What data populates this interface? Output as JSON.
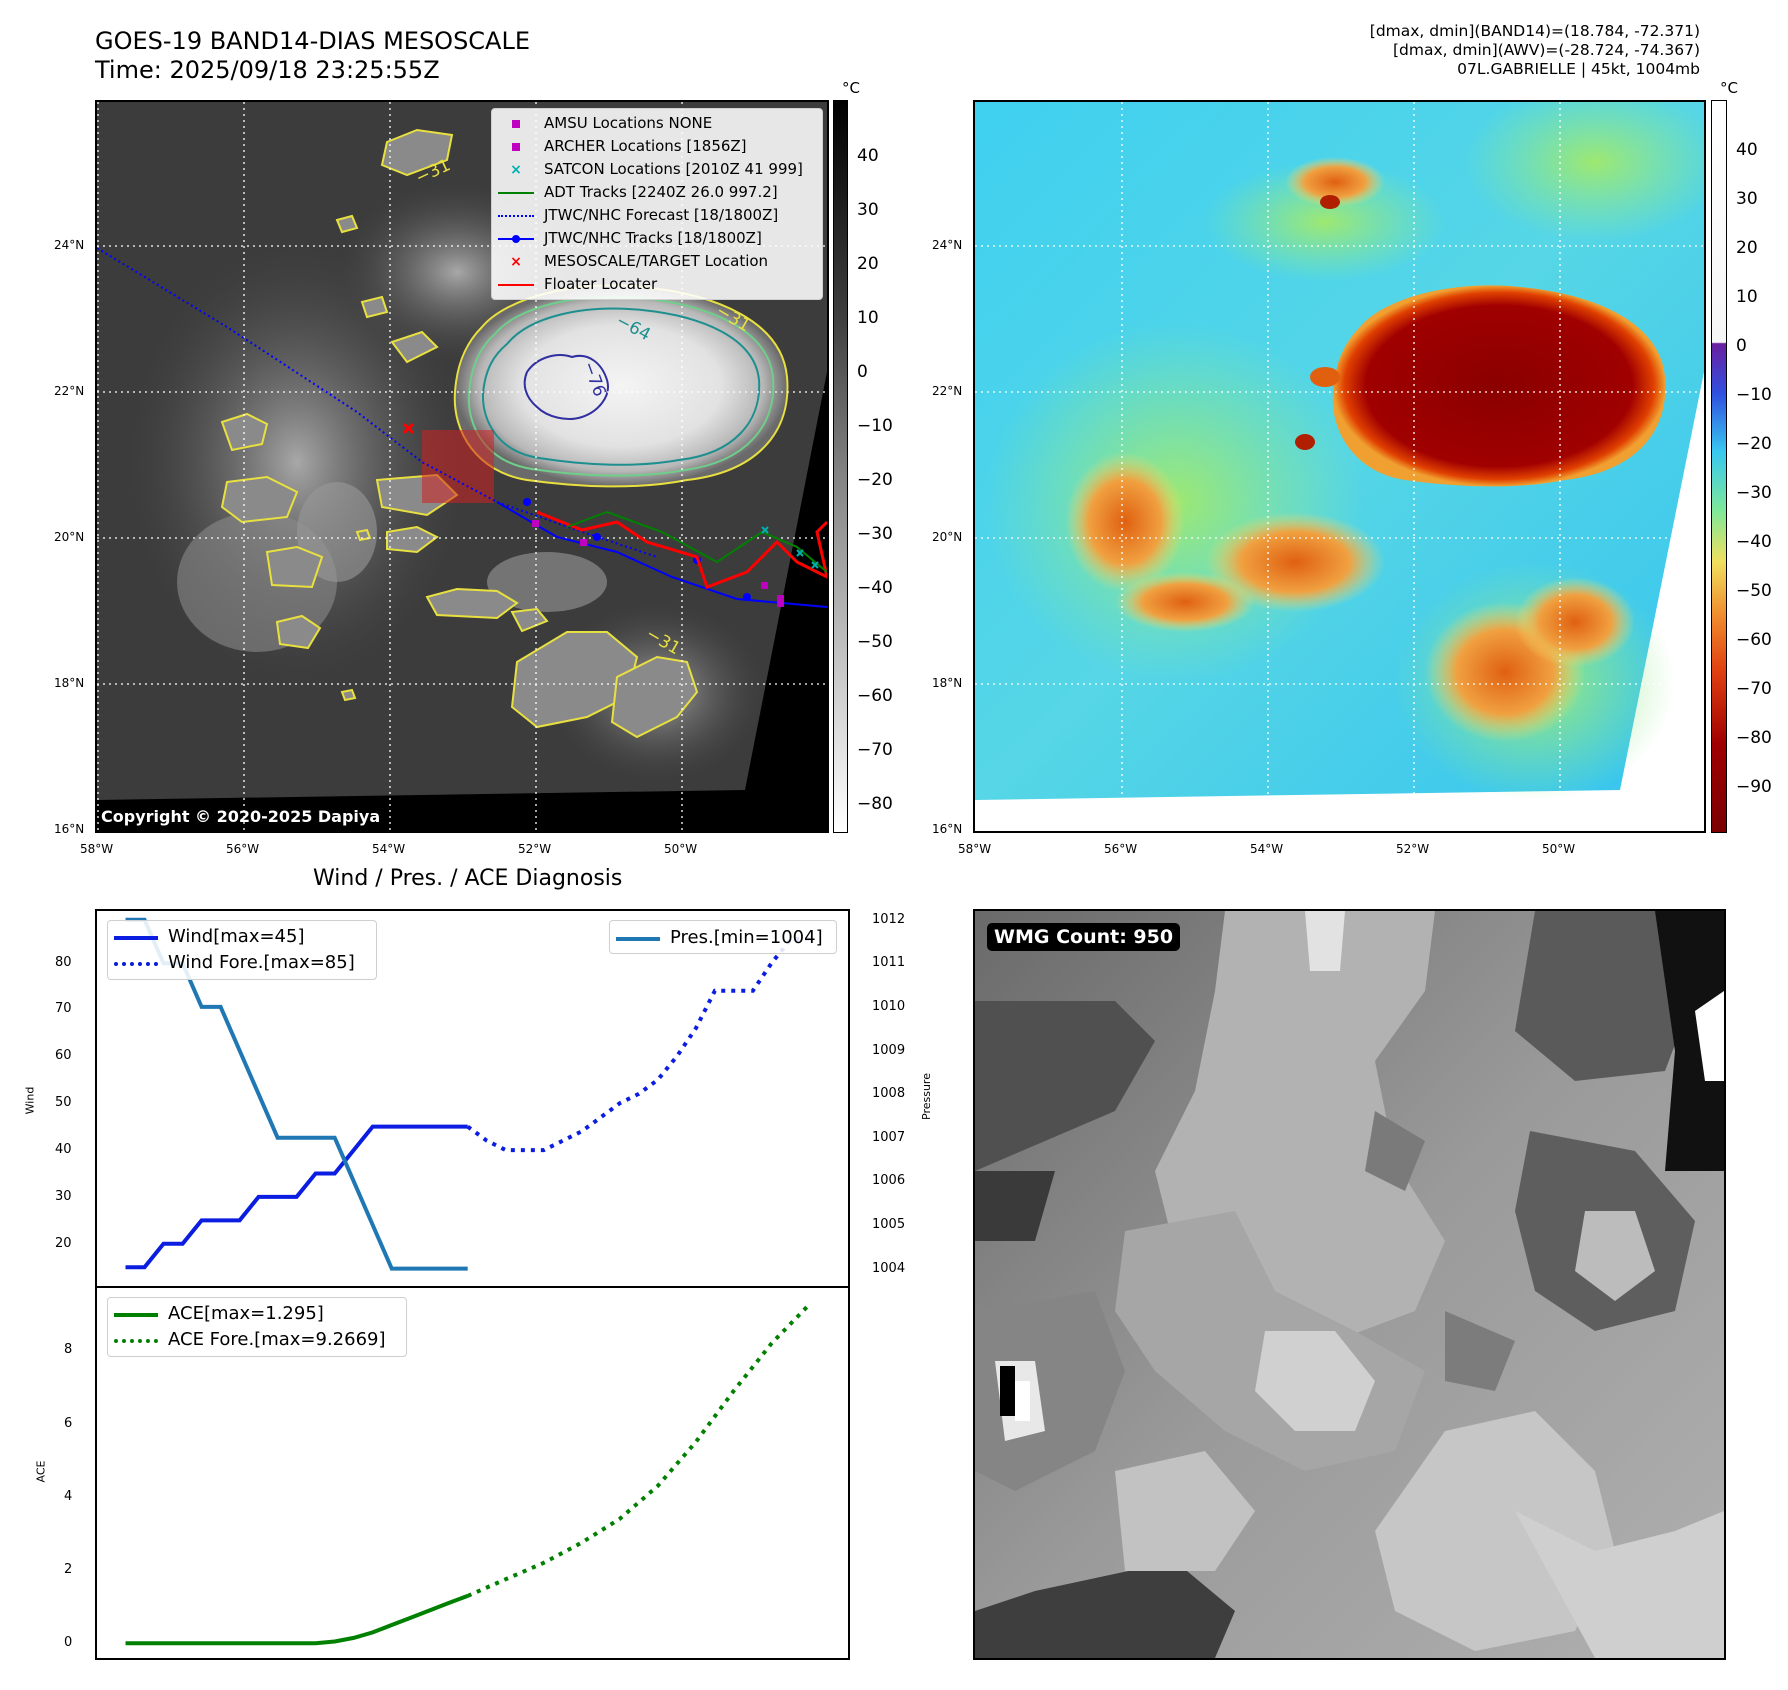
{
  "header": {
    "title_line1": "GOES-19 BAND14-DIAS MESOSCALE",
    "title_line2": "Time: 2025/09/18 23:25:55Z",
    "right_line1": "[dmax, dmin](BAND14)=(18.784, -72.371)",
    "right_line2": "[dmax, dmin](AWV)=(-28.724, -74.367)",
    "right_line3": "07L.GABRIELLE | 45kt, 1004mb"
  },
  "maps": {
    "lon_ticks": [
      "58°W",
      "56°W",
      "54°W",
      "52°W",
      "50°W"
    ],
    "lat_ticks": [
      "24°N",
      "22°N",
      "20°N",
      "18°N",
      "16°N"
    ],
    "colorbar_unit": "°C",
    "band14_colorbar_ticks": [
      "40",
      "30",
      "20",
      "10",
      "0",
      "−10",
      "−20",
      "−30",
      "−40",
      "−50",
      "−60",
      "−70",
      "−80"
    ],
    "awv_colorbar_ticks": [
      "40",
      "30",
      "20",
      "10",
      "0",
      "−10",
      "−20",
      "−30",
      "−40",
      "−50",
      "−60",
      "−70",
      "−80",
      "−90"
    ],
    "copyright": "Copyright © 2020-2025 Dapiya",
    "contour_labels": [
      "−64",
      "−76",
      "−31",
      "−31",
      "−31"
    ],
    "legend": [
      {
        "label": "AMSU Locations NONE",
        "color": "#c000c0",
        "marker": "square"
      },
      {
        "label": "ARCHER Locations [1856Z]",
        "color": "#c000c0",
        "marker": "square"
      },
      {
        "label": "SATCON Locations [2010Z 41 999]",
        "color": "#00b0b0",
        "marker": "x"
      },
      {
        "label": "ADT Tracks [2240Z 26.0 997.2]",
        "color": "#008000",
        "marker": "line"
      },
      {
        "label": "JTWC/NHC Forecast [18/1800Z]",
        "color": "#0000ff",
        "marker": "dotted"
      },
      {
        "label": "JTWC/NHC Tracks [18/1800Z]",
        "color": "#0000ff",
        "marker": "line-dot"
      },
      {
        "label": "MESOSCALE/TARGET Location",
        "color": "#ff0000",
        "marker": "x"
      },
      {
        "label": "Floater Locater",
        "color": "#ff0000",
        "marker": "line"
      }
    ]
  },
  "wmg": {
    "count_label": "WMG Count: 950"
  },
  "chart_data": [
    {
      "type": "line",
      "title": "Wind / Pres. / ACE Diagnosis",
      "ylabel": "Wind",
      "ylabel_right": "Pressure",
      "left_yticks": [
        "80",
        "70",
        "60",
        "50",
        "40",
        "30",
        "20"
      ],
      "right_yticks": [
        "1012",
        "1011",
        "1010",
        "1009",
        "1008",
        "1007",
        "1006",
        "1005",
        "1004"
      ],
      "ylim": [
        11,
        91
      ],
      "ylim_right": [
        1003.6,
        1012.2
      ],
      "series": [
        {
          "name": "Wind[max=45]",
          "style": "solid",
          "color": "#0a1de0",
          "x": [
            0,
            1,
            2,
            3,
            4,
            5,
            6,
            7,
            8,
            9,
            10,
            11,
            12,
            13,
            14,
            15,
            16,
            17,
            18
          ],
          "values": [
            15,
            15,
            20,
            20,
            25,
            25,
            25,
            30,
            30,
            30,
            35,
            35,
            40,
            45,
            45,
            45,
            45,
            45,
            45
          ]
        },
        {
          "name": "Wind Fore.[max=85]",
          "style": "dotted",
          "color": "#0a1de0",
          "x": [
            18,
            19,
            20,
            21,
            22,
            23,
            24,
            25,
            26,
            27,
            28,
            29,
            30,
            31,
            32,
            33,
            34,
            35,
            36
          ],
          "values": [
            45,
            42,
            40,
            40,
            40,
            42,
            44,
            47,
            50,
            52,
            55,
            60,
            66,
            74,
            74,
            74,
            80,
            85,
            85
          ]
        },
        {
          "name": "Pres.[min=1004]",
          "style": "solid",
          "color": "#1f77b4",
          "axis": "right",
          "x": [
            0,
            1,
            2,
            3,
            4,
            5,
            6,
            7,
            8,
            9,
            10,
            11,
            12,
            13,
            14,
            15,
            16,
            17,
            18
          ],
          "values": [
            1012,
            1012,
            1011,
            1011,
            1010,
            1010,
            1009,
            1008,
            1007,
            1007,
            1007,
            1007,
            1006,
            1005,
            1004,
            1004,
            1004,
            1004,
            1004
          ]
        }
      ]
    },
    {
      "type": "line",
      "ylabel": "ACE",
      "yticks": [
        "8",
        "6",
        "4",
        "2",
        "0"
      ],
      "ylim": [
        -0.4,
        9.7
      ],
      "series": [
        {
          "name": "ACE[max=1.295]",
          "style": "solid",
          "color": "#008000",
          "x": [
            0,
            5,
            10,
            11,
            12,
            13,
            14,
            15,
            16,
            17,
            18
          ],
          "values": [
            0,
            0,
            0,
            0.05,
            0.15,
            0.3,
            0.5,
            0.7,
            0.9,
            1.1,
            1.295
          ]
        },
        {
          "name": "ACE Fore.[max=9.2669]",
          "style": "dotted",
          "color": "#008000",
          "x": [
            18,
            20,
            22,
            24,
            26,
            28,
            30,
            32,
            34,
            36
          ],
          "values": [
            1.295,
            1.75,
            2.2,
            2.75,
            3.4,
            4.3,
            5.5,
            6.9,
            8.2,
            9.27
          ]
        }
      ]
    }
  ]
}
